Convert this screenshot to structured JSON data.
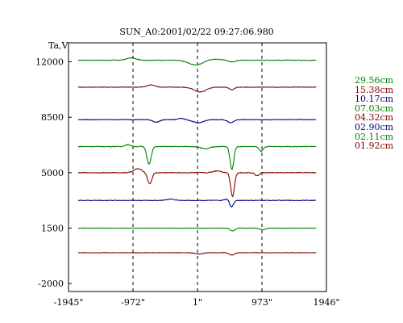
{
  "chart_data": {
    "type": "line",
    "title": "SUN_A0:2001/02/22 09:27:06.980",
    "ylabel": "Ta,V",
    "xlabel": "",
    "xlim": [
      -1945,
      1946
    ],
    "ylim": [
      -2500,
      13200
    ],
    "x_ticks": [
      -1945,
      -972,
      1,
      973,
      1946
    ],
    "x_tick_labels": [
      "-1945\"",
      "-972\"",
      "1\"",
      "973\"",
      "1946\""
    ],
    "y_ticks": [
      12000,
      8500,
      5000,
      1500,
      -2000
    ],
    "y_tick_labels": [
      "12000",
      "8500",
      "5000",
      "1500",
      "-2000"
    ],
    "vertical_guides": [
      -972,
      1,
      973
    ],
    "grid": false,
    "legend_position": "right",
    "series": [
      {
        "name": "29.56cm",
        "color": "#008000",
        "baseline": 12100,
        "wiggle": 40,
        "features": [
          {
            "x": -1000,
            "d": 150,
            "w": 70
          },
          {
            "x": -5,
            "d": -350,
            "w": 120
          },
          {
            "x": 160,
            "d": 120,
            "w": 140
          },
          {
            "x": 520,
            "d": -120,
            "w": 50
          }
        ]
      },
      {
        "name": "15.38cm",
        "color": "#800000",
        "baseline": 10400,
        "wiggle": 35,
        "features": [
          {
            "x": -700,
            "d": 140,
            "w": 60
          },
          {
            "x": 40,
            "d": -300,
            "w": 90
          },
          {
            "x": 520,
            "d": -150,
            "w": 40
          }
        ]
      },
      {
        "name": "10.17cm",
        "color": "#000080",
        "baseline": 8350,
        "wiggle": 35,
        "features": [
          {
            "x": -620,
            "d": -160,
            "w": 50
          },
          {
            "x": -250,
            "d": 90,
            "w": 40
          },
          {
            "x": 10,
            "d": -200,
            "w": 80
          },
          {
            "x": 500,
            "d": -200,
            "w": 45
          }
        ]
      },
      {
        "name": "07.03cm",
        "color": "#008000",
        "baseline": 6650,
        "wiggle": 45,
        "features": [
          {
            "x": -730,
            "d": -1100,
            "w": 32
          },
          {
            "x": -1050,
            "d": 120,
            "w": 40
          },
          {
            "x": 520,
            "d": -1450,
            "w": 28
          },
          {
            "x": 960,
            "d": -300,
            "w": 30
          },
          {
            "x": 120,
            "d": -150,
            "w": 60
          }
        ]
      },
      {
        "name": "04.32cm",
        "color": "#800000",
        "baseline": 5000,
        "wiggle": 45,
        "features": [
          {
            "x": -720,
            "d": -700,
            "w": 32
          },
          {
            "x": -900,
            "d": 250,
            "w": 60
          },
          {
            "x": 530,
            "d": -1500,
            "w": 28
          },
          {
            "x": 900,
            "d": -200,
            "w": 30
          },
          {
            "x": 300,
            "d": 120,
            "w": 60
          }
        ]
      },
      {
        "name": "02.90cm",
        "color": "#000080",
        "baseline": 3250,
        "wiggle": 40,
        "features": [
          {
            "x": 510,
            "d": -500,
            "w": 30
          },
          {
            "x": 470,
            "d": 150,
            "w": 40
          },
          {
            "x": -400,
            "d": 80,
            "w": 60
          }
        ]
      },
      {
        "name": "02.11cm",
        "color": "#008000",
        "baseline": 1500,
        "wiggle": 30,
        "features": [
          {
            "x": 530,
            "d": -180,
            "w": 35
          },
          {
            "x": 980,
            "d": -100,
            "w": 40
          }
        ]
      },
      {
        "name": "01.92cm",
        "color": "#800000",
        "baseline": -50,
        "wiggle": 30,
        "features": [
          {
            "x": 520,
            "d": -150,
            "w": 40
          },
          {
            "x": 20,
            "d": -80,
            "w": 60
          }
        ]
      }
    ]
  }
}
